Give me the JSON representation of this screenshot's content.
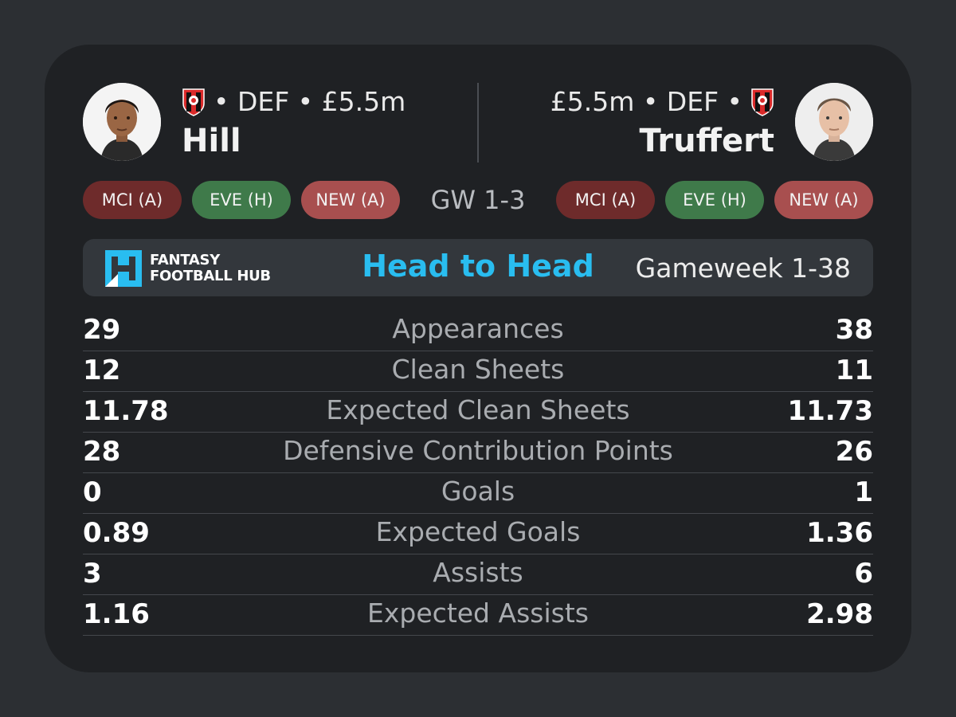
{
  "player_left": {
    "name": "Hill",
    "meta": "• DEF • £5.5m",
    "fixtures": [
      {
        "label": "MCI (A)",
        "color": "#6e2b2b"
      },
      {
        "label": "EVE (H)",
        "color": "#3f7a4a"
      },
      {
        "label": "NEW (A)",
        "color": "#a84f4f"
      }
    ]
  },
  "player_right": {
    "name": "Truffert",
    "meta": "£5.5m • DEF •",
    "fixtures": [
      {
        "label": "MCI (A)",
        "color": "#6e2b2b"
      },
      {
        "label": "EVE (H)",
        "color": "#3f7a4a"
      },
      {
        "label": "NEW (A)",
        "color": "#a84f4f"
      }
    ]
  },
  "gw_fixtures_label": "GW 1-3",
  "banner": {
    "logo_line1": "FANTASY",
    "logo_line2": "FOOTBALL HUB",
    "title": "Head to Head",
    "range": "Gameweek 1-38"
  },
  "stats": [
    {
      "label": "Appearances",
      "left": "29",
      "right": "38"
    },
    {
      "label": "Clean Sheets",
      "left": "12",
      "right": "11"
    },
    {
      "label": "Expected Clean Sheets",
      "left": "11.78",
      "right": "11.73"
    },
    {
      "label": "Defensive Contribution Points",
      "left": "28",
      "right": "26"
    },
    {
      "label": "Goals",
      "left": "0",
      "right": "1"
    },
    {
      "label": "Expected Goals",
      "left": "0.89",
      "right": "1.36"
    },
    {
      "label": "Assists",
      "left": "3",
      "right": "6"
    },
    {
      "label": "Expected Assists",
      "left": "1.16",
      "right": "2.98"
    }
  ],
  "colors": {
    "accent": "#29bdf0",
    "background": "#2c2f33",
    "card": "#1f2124"
  },
  "icons": {
    "crest": "bournemouth-crest-icon",
    "avatar": "player-photo"
  }
}
